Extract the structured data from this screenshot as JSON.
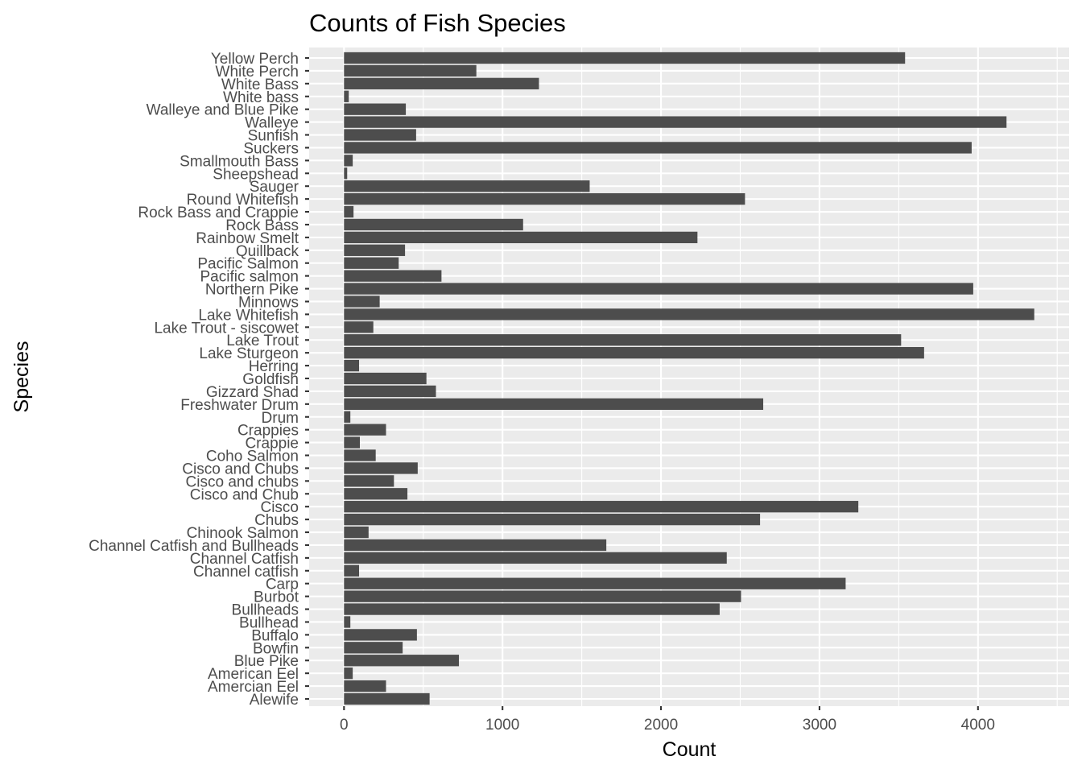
{
  "chart_data": {
    "type": "bar",
    "orientation": "horizontal",
    "title": "Counts of Fish Species",
    "xlabel": "Count",
    "ylabel": "Species",
    "xlim": [
      -220,
      4575
    ],
    "xticks": [
      0,
      1000,
      2000,
      3000,
      4000
    ],
    "xtick_labels": [
      "0",
      "1000",
      "2000",
      "3000",
      "4000"
    ],
    "grid": true,
    "legend": "none",
    "bar_color": "#4d4d4d",
    "panel_color": "#ebebeb",
    "categories": [
      "Yellow Perch",
      "White Perch",
      "White Bass",
      "White bass",
      "Walleye and Blue Pike",
      "Walleye",
      "Sunfish",
      "Suckers",
      "Smallmouth Bass",
      "Sheepshead",
      "Sauger",
      "Round Whitefish",
      "Rock Bass and Crappie",
      "Rock Bass",
      "Rainbow Smelt",
      "Quillback",
      "Pacific Salmon",
      "Pacific salmon",
      "Northern Pike",
      "Minnows",
      "Lake Whitefish",
      "Lake Trout - siscowet",
      "Lake Trout",
      "Lake Sturgeon",
      "Herring",
      "Goldfish",
      "Gizzard Shad",
      "Freshwater Drum",
      "Drum",
      "Crappies",
      "Crappie",
      "Coho Salmon",
      "Cisco and Chubs",
      "Cisco and chubs",
      "Cisco and Chub",
      "Cisco",
      "Chubs",
      "Chinook Salmon",
      "Channel Catfish and Bullheads",
      "Channel Catfish",
      "Channel catfish",
      "Carp",
      "Burbot",
      "Bullheads",
      "Bullhead",
      "Buffalo",
      "Bowfin",
      "Blue Pike",
      "American Eel",
      "Amercian Eel",
      "Alewife"
    ],
    "values": [
      3540,
      835,
      1230,
      30,
      390,
      4180,
      455,
      3960,
      55,
      20,
      1550,
      2530,
      60,
      1130,
      2230,
      385,
      345,
      615,
      3970,
      225,
      4355,
      185,
      3515,
      3660,
      95,
      520,
      580,
      2645,
      40,
      265,
      100,
      200,
      465,
      315,
      400,
      3245,
      2625,
      155,
      1655,
      2415,
      95,
      3165,
      2505,
      2370,
      40,
      460,
      370,
      725,
      55,
      265,
      540
    ]
  }
}
